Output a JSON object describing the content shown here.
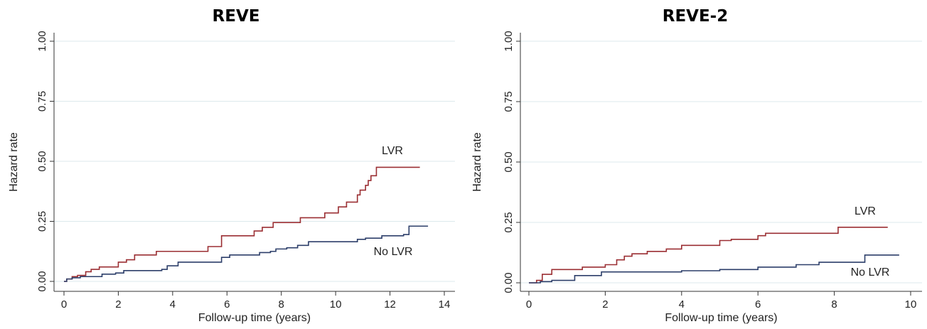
{
  "chart_data": [
    {
      "type": "line",
      "title": "REVE",
      "xlabel": "Follow-up time (years)",
      "ylabel": "Hazard rate",
      "xlim": [
        0,
        14
      ],
      "ylim": [
        0,
        1
      ],
      "xticks": [
        "0",
        "2",
        "4",
        "6",
        "8",
        "10",
        "12",
        "14"
      ],
      "yticks": [
        "0.00",
        "0.25",
        "0.50",
        "0.75",
        "1.00"
      ],
      "grid": "horizontal",
      "series": [
        {
          "name": "LVR",
          "color": "#9b2f33",
          "step": true,
          "x": [
            0,
            0.1,
            0.3,
            0.5,
            0.8,
            1.0,
            1.3,
            2.0,
            2.3,
            2.6,
            3.4,
            5.3,
            5.8,
            7.0,
            7.3,
            7.7,
            8.7,
            9.6,
            10.1,
            10.4,
            10.8,
            10.9,
            11.1,
            11.2,
            11.3,
            11.5,
            13.1
          ],
          "y": [
            0,
            0.01,
            0.02,
            0.025,
            0.04,
            0.05,
            0.06,
            0.08,
            0.09,
            0.11,
            0.125,
            0.145,
            0.19,
            0.21,
            0.225,
            0.245,
            0.265,
            0.285,
            0.31,
            0.33,
            0.36,
            0.38,
            0.4,
            0.42,
            0.44,
            0.475,
            0.475
          ]
        },
        {
          "name": "No LVR",
          "color": "#2d3f6a",
          "step": true,
          "x": [
            0,
            0.1,
            0.3,
            0.6,
            1.4,
            1.9,
            2.2,
            3.6,
            3.8,
            4.2,
            5.8,
            6.1,
            7.2,
            7.6,
            7.8,
            8.2,
            8.6,
            9.0,
            10.8,
            11.1,
            11.7,
            12.5,
            12.7,
            13.4
          ],
          "y": [
            0,
            0.01,
            0.015,
            0.02,
            0.03,
            0.035,
            0.045,
            0.05,
            0.065,
            0.08,
            0.1,
            0.11,
            0.12,
            0.125,
            0.135,
            0.14,
            0.15,
            0.165,
            0.175,
            0.18,
            0.19,
            0.195,
            0.23,
            0.23
          ]
        }
      ]
    },
    {
      "type": "line",
      "title": "REVE-2",
      "xlabel": "Follow-up time (years)",
      "ylabel": "Hazard rate",
      "xlim": [
        0,
        10
      ],
      "ylim": [
        0,
        1
      ],
      "xticks": [
        "0",
        "2",
        "4",
        "6",
        "8",
        "10"
      ],
      "yticks": [
        "0.00",
        "0.25",
        "0.50",
        "0.75",
        "1.00"
      ],
      "grid": "horizontal",
      "series": [
        {
          "name": "LVR",
          "color": "#9b2f33",
          "step": true,
          "x": [
            0,
            0.2,
            0.35,
            0.6,
            1.4,
            2.0,
            2.3,
            2.5,
            2.7,
            3.1,
            3.6,
            4.0,
            5.0,
            5.3,
            6.0,
            6.2,
            8.1,
            9.4
          ],
          "y": [
            0,
            0.01,
            0.035,
            0.055,
            0.065,
            0.075,
            0.095,
            0.11,
            0.12,
            0.13,
            0.14,
            0.155,
            0.175,
            0.18,
            0.195,
            0.205,
            0.23,
            0.23
          ]
        },
        {
          "name": "No LVR",
          "color": "#2d3f6a",
          "step": true,
          "x": [
            0,
            0.3,
            0.6,
            1.2,
            1.9,
            4.0,
            5.0,
            6.0,
            7.0,
            7.6,
            8.8,
            9.7
          ],
          "y": [
            0,
            0.005,
            0.01,
            0.03,
            0.045,
            0.05,
            0.055,
            0.065,
            0.075,
            0.085,
            0.115,
            0.115
          ]
        }
      ]
    }
  ]
}
